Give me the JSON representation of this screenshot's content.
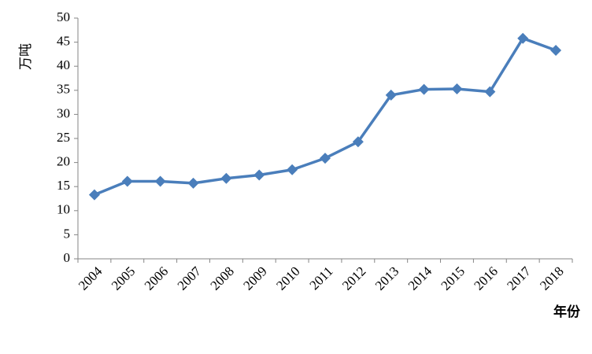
{
  "chart_data": {
    "type": "line",
    "y_label": "万吨",
    "x_label": "年份",
    "categories": [
      "2004",
      "2005",
      "2006",
      "2007",
      "2008",
      "2009",
      "2010",
      "2011",
      "2012",
      "2013",
      "2014",
      "2015",
      "2016",
      "2017",
      "2018"
    ],
    "values": [
      13.3,
      16.1,
      16.1,
      15.7,
      16.7,
      17.4,
      18.5,
      20.9,
      24.3,
      34.0,
      35.2,
      35.3,
      34.7,
      45.8,
      43.3
    ],
    "color": "#4a7ebb",
    "ylim": [
      0,
      50
    ],
    "yticks": [
      0,
      5,
      10,
      15,
      20,
      25,
      30,
      35,
      40,
      45,
      50
    ]
  }
}
